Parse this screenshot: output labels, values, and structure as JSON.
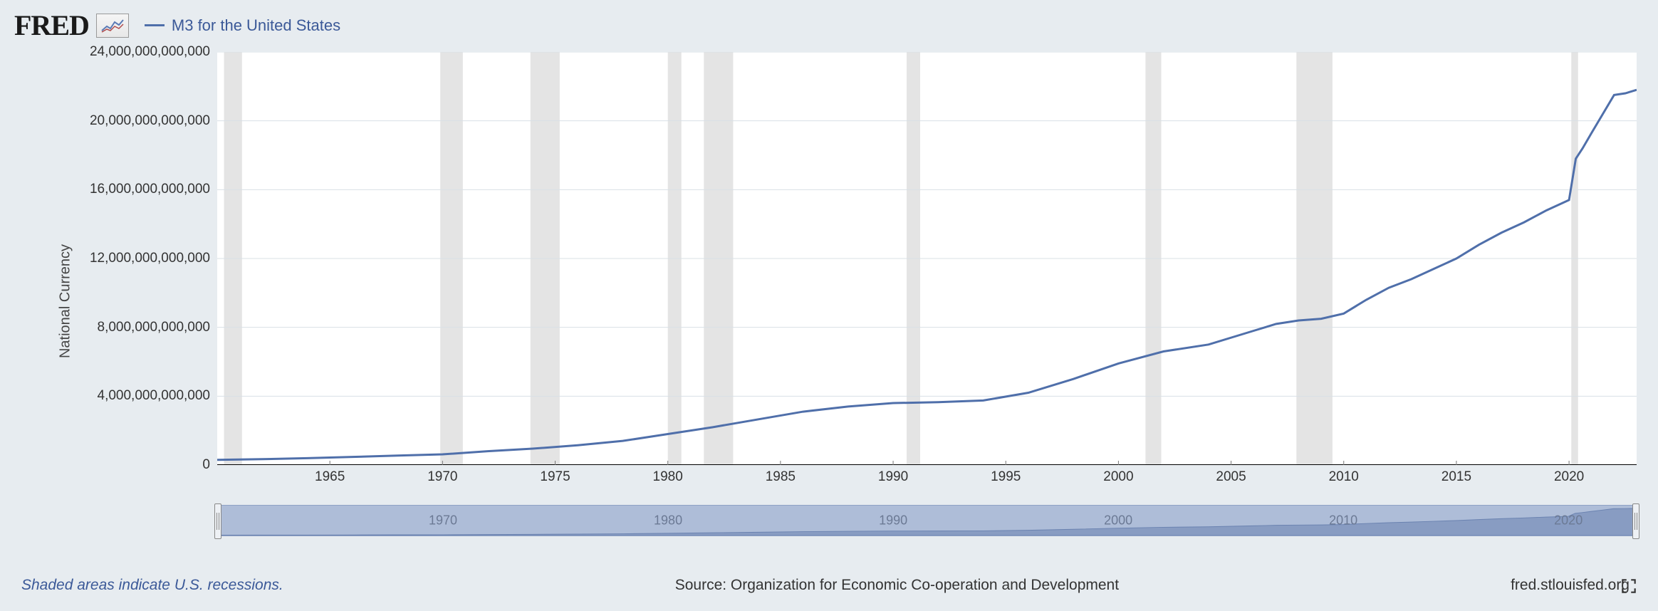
{
  "header": {
    "logo_text": "FRED",
    "series_label": "M3 for the United States"
  },
  "chart": {
    "type": "line",
    "line_color": "#4f6faa",
    "line_width": 3,
    "background_color": "#ffffff",
    "page_background": "#e7ecf0",
    "grid_color": "#d9e0e6",
    "axis_color": "#000000",
    "recession_fill": "#e4e4e4",
    "y_axis": {
      "label": "National Currency",
      "min": 0,
      "max": 24000000000000,
      "tick_step": 4000000000000,
      "ticks": [
        {
          "v": 0,
          "label": "0"
        },
        {
          "v": 4000000000000,
          "label": "4,000,000,000,000"
        },
        {
          "v": 8000000000000,
          "label": "8,000,000,000,000"
        },
        {
          "v": 12000000000000,
          "label": "12,000,000,000,000"
        },
        {
          "v": 16000000000000,
          "label": "16,000,000,000,000"
        },
        {
          "v": 20000000000000,
          "label": "20,000,000,000,000"
        },
        {
          "v": 24000000000000,
          "label": "24,000,000,000,000"
        }
      ]
    },
    "x_axis": {
      "min": 1960,
      "max": 2023,
      "ticks": [
        1965,
        1970,
        1975,
        1980,
        1985,
        1990,
        1995,
        2000,
        2005,
        2010,
        2015,
        2020
      ]
    },
    "recessions": [
      {
        "start": 1960.3,
        "end": 1961.1
      },
      {
        "start": 1969.9,
        "end": 1970.9
      },
      {
        "start": 1973.9,
        "end": 1975.2
      },
      {
        "start": 1980.0,
        "end": 1980.6
      },
      {
        "start": 1981.6,
        "end": 1982.9
      },
      {
        "start": 1990.6,
        "end": 1991.2
      },
      {
        "start": 2001.2,
        "end": 2001.9
      },
      {
        "start": 2007.9,
        "end": 2009.5
      },
      {
        "start": 2020.1,
        "end": 2020.4
      }
    ],
    "series": [
      {
        "x": 1960,
        "y": 300000000000
      },
      {
        "x": 1962,
        "y": 340000000000
      },
      {
        "x": 1964,
        "y": 400000000000
      },
      {
        "x": 1966,
        "y": 470000000000
      },
      {
        "x": 1968,
        "y": 550000000000
      },
      {
        "x": 1970,
        "y": 620000000000
      },
      {
        "x": 1972,
        "y": 800000000000
      },
      {
        "x": 1974,
        "y": 950000000000
      },
      {
        "x": 1976,
        "y": 1150000000000
      },
      {
        "x": 1978,
        "y": 1400000000000
      },
      {
        "x": 1980,
        "y": 1800000000000
      },
      {
        "x": 1982,
        "y": 2200000000000
      },
      {
        "x": 1984,
        "y": 2650000000000
      },
      {
        "x": 1986,
        "y": 3100000000000
      },
      {
        "x": 1988,
        "y": 3400000000000
      },
      {
        "x": 1990,
        "y": 3600000000000
      },
      {
        "x": 1992,
        "y": 3650000000000
      },
      {
        "x": 1994,
        "y": 3750000000000
      },
      {
        "x": 1996,
        "y": 4200000000000
      },
      {
        "x": 1998,
        "y": 5000000000000
      },
      {
        "x": 2000,
        "y": 5900000000000
      },
      {
        "x": 2002,
        "y": 6600000000000
      },
      {
        "x": 2004,
        "y": 7000000000000
      },
      {
        "x": 2006,
        "y": 7800000000000
      },
      {
        "x": 2007,
        "y": 8200000000000
      },
      {
        "x": 2008,
        "y": 8400000000000
      },
      {
        "x": 2009,
        "y": 8500000000000
      },
      {
        "x": 2010,
        "y": 8800000000000
      },
      {
        "x": 2011,
        "y": 9600000000000
      },
      {
        "x": 2012,
        "y": 10300000000000
      },
      {
        "x": 2013,
        "y": 10800000000000
      },
      {
        "x": 2014,
        "y": 11400000000000
      },
      {
        "x": 2015,
        "y": 12000000000000
      },
      {
        "x": 2016,
        "y": 12800000000000
      },
      {
        "x": 2017,
        "y": 13500000000000
      },
      {
        "x": 2018,
        "y": 14100000000000
      },
      {
        "x": 2019,
        "y": 14800000000000
      },
      {
        "x": 2020.0,
        "y": 15400000000000
      },
      {
        "x": 2020.3,
        "y": 17800000000000
      },
      {
        "x": 2020.6,
        "y": 18400000000000
      },
      {
        "x": 2021.0,
        "y": 19300000000000
      },
      {
        "x": 2021.5,
        "y": 20400000000000
      },
      {
        "x": 2022.0,
        "y": 21500000000000
      },
      {
        "x": 2022.5,
        "y": 21600000000000
      },
      {
        "x": 2023.0,
        "y": 21800000000000
      }
    ]
  },
  "navigator": {
    "x_ticks": [
      1970,
      1980,
      1990,
      2000,
      2010,
      2020
    ],
    "fill_color": "#aebdd8",
    "line_color": "#6a82b0"
  },
  "footer": {
    "note": "Shaded areas indicate U.S. recessions.",
    "source": "Source: Organization for Economic Co-operation and Development",
    "site": "fred.stlouisfed.org"
  }
}
